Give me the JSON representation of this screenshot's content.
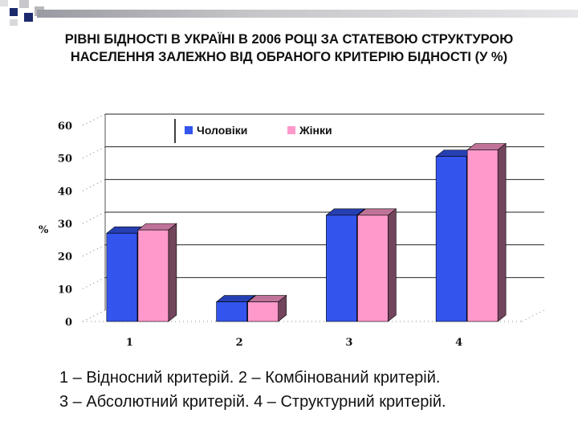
{
  "title": {
    "line1": "РІВНІ БІДНОСТІ В УКРАЇНІ В 2006 РОЦІ ЗА СТАТЕВОЮ СТРУКТУРОЮ",
    "line2": "НАСЕЛЕННЯ ЗАЛЕЖНО ВІД ОБРАНОГО КРИТЕРІЮ БІДНОСТІ (У %)"
  },
  "caption": {
    "line1": "1 – Відносний критерій. 2 – Комбінований критерій.",
    "line2": "3 – Абсолютний критерій. 4 – Структурний критерій."
  },
  "chart_data": {
    "type": "bar",
    "categories": [
      "1",
      "2",
      "3",
      "4"
    ],
    "series": [
      {
        "name": "Чоловіки",
        "values": [
          27,
          6,
          32.5,
          50.5
        ],
        "color": "#3355ee"
      },
      {
        "name": "Жінки",
        "values": [
          28,
          6,
          32.5,
          52.5
        ],
        "color": "#ff99cc"
      }
    ],
    "ylabel": "%",
    "ylim": [
      0,
      60
    ],
    "yticks": [
      "0",
      "10",
      "20",
      "30",
      "40",
      "50",
      "60"
    ],
    "grid": true,
    "legend_position": "top"
  },
  "colors": {
    "accent_navy": "#1a2a6c",
    "accent_gray": "#a8a8ae"
  }
}
